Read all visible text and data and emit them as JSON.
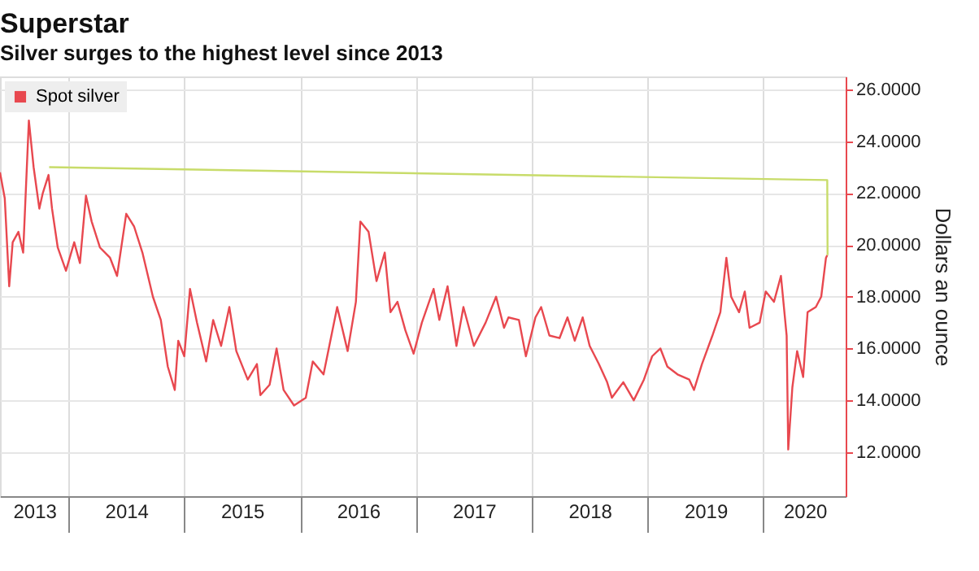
{
  "chart_data": {
    "type": "line",
    "title": "Superstar",
    "subtitle": "Silver surges to the highest level since 2013",
    "ylabel": "Dollars an ounce",
    "xlim": [
      "2013-05-30",
      "2020-09-16"
    ],
    "ylim": [
      10.3,
      26.5
    ],
    "yticks": [
      {
        "value": 12,
        "label": "12.0000"
      },
      {
        "value": 14,
        "label": "14.0000"
      },
      {
        "value": 16,
        "label": "16.0000"
      },
      {
        "value": 18,
        "label": "18.0000"
      },
      {
        "value": 20,
        "label": "20.0000"
      },
      {
        "value": 22,
        "label": "22.0000"
      },
      {
        "value": 24,
        "label": "24.0000"
      },
      {
        "value": 26,
        "label": "26.0000"
      }
    ],
    "xticks": [
      {
        "value": "2013-09-15",
        "label": "2013"
      },
      {
        "value": "2014-01-01",
        "label": null
      },
      {
        "value": "2014-07-02",
        "label": "2014"
      },
      {
        "value": "2015-01-01",
        "label": null
      },
      {
        "value": "2015-07-02",
        "label": "2015"
      },
      {
        "value": "2016-01-01",
        "label": null
      },
      {
        "value": "2016-07-02",
        "label": "2016"
      },
      {
        "value": "2017-01-01",
        "label": null
      },
      {
        "value": "2017-07-02",
        "label": "2017"
      },
      {
        "value": "2018-01-01",
        "label": null
      },
      {
        "value": "2018-07-02",
        "label": "2018"
      },
      {
        "value": "2019-01-01",
        "label": null
      },
      {
        "value": "2019-07-02",
        "label": "2019"
      },
      {
        "value": "2020-01-01",
        "label": null
      },
      {
        "value": "2020-05-10",
        "label": "2020"
      }
    ],
    "grid": true,
    "legend": "top left",
    "line_style": "solid",
    "marker": "none",
    "series": [
      {
        "name": "Spot silver",
        "color": "#e8484f",
        "x": [
          "2013-05-30",
          "2013-06-14",
          "2013-06-28",
          "2013-07-09",
          "2013-07-27",
          "2013-08-11",
          "2013-08-29",
          "2013-09-13",
          "2013-10-01",
          "2013-10-12",
          "2013-10-30",
          "2013-11-10",
          "2013-11-28",
          "2013-12-24",
          "2014-01-19",
          "2014-02-06",
          "2014-02-25",
          "2014-03-15",
          "2014-04-10",
          "2014-05-12",
          "2014-06-03",
          "2014-07-02",
          "2014-07-27",
          "2014-08-22",
          "2014-09-24",
          "2014-10-19",
          "2014-11-10",
          "2014-12-02",
          "2014-12-13",
          "2015-01-01",
          "2015-01-19",
          "2015-02-10",
          "2015-03-11",
          "2015-04-02",
          "2015-04-27",
          "2015-05-23",
          "2015-06-14",
          "2015-07-20",
          "2015-08-18",
          "2015-08-29",
          "2015-09-27",
          "2015-10-19",
          "2015-11-10",
          "2015-12-13",
          "2016-01-19",
          "2016-02-10",
          "2016-03-15",
          "2016-04-27",
          "2016-05-30",
          "2016-06-25",
          "2016-07-09",
          "2016-08-04",
          "2016-08-29",
          "2016-09-24",
          "2016-10-12",
          "2016-11-03",
          "2016-11-28",
          "2016-12-24",
          "2017-01-19",
          "2017-02-25",
          "2017-03-15",
          "2017-04-10",
          "2017-05-08",
          "2017-05-30",
          "2017-07-02",
          "2017-08-08",
          "2017-09-10",
          "2017-10-05",
          "2017-10-19",
          "2017-11-21",
          "2017-12-13",
          "2018-01-12",
          "2018-01-30",
          "2018-02-25",
          "2018-03-29",
          "2018-04-23",
          "2018-05-16",
          "2018-06-10",
          "2018-07-02",
          "2018-07-31",
          "2018-08-26",
          "2018-09-10",
          "2018-10-16",
          "2018-11-18",
          "2018-12-20",
          "2019-01-15",
          "2019-02-10",
          "2019-03-04",
          "2019-04-05",
          "2019-05-12",
          "2019-05-27",
          "2019-06-21",
          "2019-07-24",
          "2019-08-18",
          "2019-09-06",
          "2019-09-21",
          "2019-10-16",
          "2019-11-03",
          "2019-11-18",
          "2019-12-20",
          "2020-01-08",
          "2020-02-03",
          "2020-02-25",
          "2020-03-14",
          "2020-03-19",
          "2020-04-01",
          "2020-04-16",
          "2020-05-05",
          "2020-05-19",
          "2020-06-14",
          "2020-07-01",
          "2020-07-16",
          "2020-07-20"
        ],
        "values": [
          22.8,
          21.8,
          18.4,
          20.1,
          20.5,
          19.7,
          24.8,
          23.0,
          21.4,
          22.0,
          22.7,
          21.4,
          19.9,
          19.0,
          20.1,
          19.3,
          21.9,
          20.9,
          19.9,
          19.5,
          18.8,
          21.2,
          20.7,
          19.7,
          18.0,
          17.1,
          15.3,
          14.4,
          16.3,
          15.7,
          18.3,
          17.0,
          15.5,
          17.1,
          16.1,
          17.6,
          15.9,
          14.8,
          15.4,
          14.2,
          14.6,
          16.0,
          14.4,
          13.8,
          14.1,
          15.5,
          15.0,
          17.6,
          15.9,
          17.8,
          20.9,
          20.5,
          18.6,
          19.7,
          17.4,
          17.8,
          16.7,
          15.8,
          17.0,
          18.3,
          17.1,
          18.4,
          16.1,
          17.6,
          16.1,
          17.0,
          18.0,
          16.8,
          17.2,
          17.1,
          15.7,
          17.2,
          17.6,
          16.5,
          16.4,
          17.2,
          16.3,
          17.2,
          16.1,
          15.4,
          14.7,
          14.1,
          14.7,
          14.0,
          14.8,
          15.7,
          16.0,
          15.3,
          15.0,
          14.8,
          14.4,
          15.4,
          16.5,
          17.4,
          19.5,
          18.0,
          17.4,
          18.2,
          16.8,
          17.0,
          18.2,
          17.8,
          18.8,
          16.5,
          12.1,
          14.5,
          15.9,
          14.9,
          17.4,
          17.6,
          18.0,
          19.5,
          19.6
        ]
      },
      {
        "color": "#c8dc6a",
        "x": [
          "2013-11-01",
          "2020-07-20",
          "2020-07-21"
        ],
        "values": [
          23.0,
          22.5,
          19.6
        ]
      }
    ]
  }
}
